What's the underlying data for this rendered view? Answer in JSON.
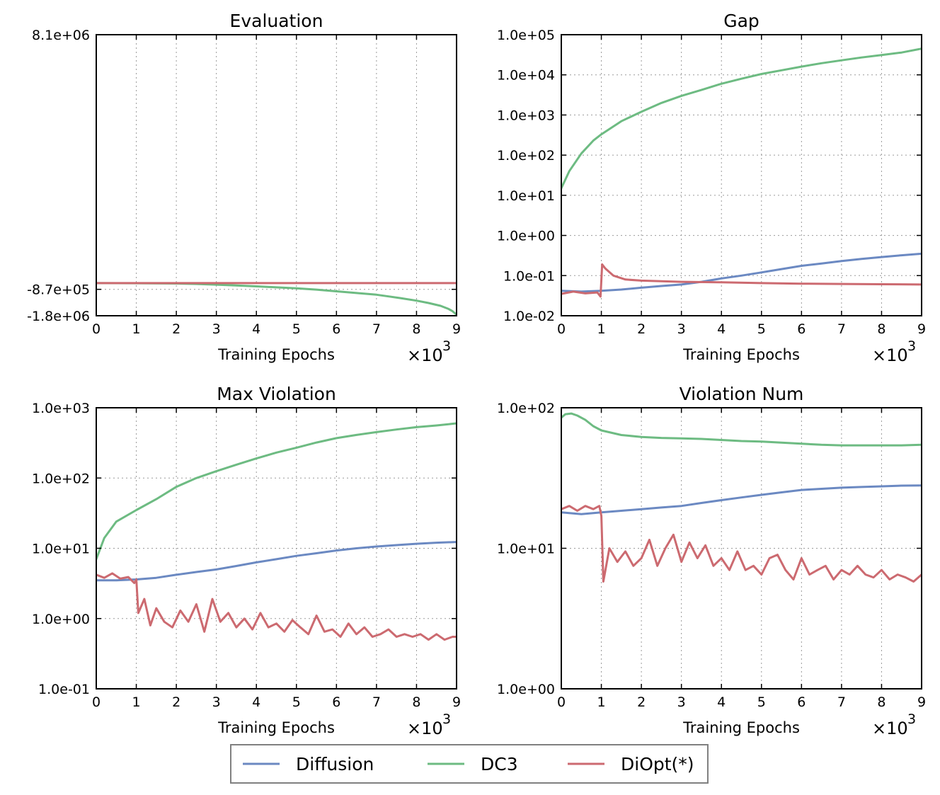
{
  "colors": {
    "diffusion": "#6b89c2",
    "dc3": "#6dbb82",
    "diopt": "#cc6a70"
  },
  "legend": {
    "entries": [
      {
        "key": "diffusion",
        "label": "Diffusion"
      },
      {
        "key": "dc3",
        "label": "DC3"
      },
      {
        "key": "diopt",
        "label": "DiOpt(*)"
      }
    ]
  },
  "chart_data": [
    {
      "type": "line",
      "title": "Evaluation",
      "xlabel": "Training Epochs",
      "x_multiplier_label": "×10",
      "x_multiplier_exp": "3",
      "xlim": [
        0,
        9
      ],
      "x_ticks": [
        0,
        1,
        2,
        3,
        4,
        5,
        6,
        7,
        8,
        9
      ],
      "yscale": "linear",
      "ylim": [
        -1800000,
        8100000
      ],
      "y_ticks": [
        {
          "value": 8100000,
          "label": "8.1e+06"
        },
        {
          "value": -870000,
          "label": "-8.7e+05"
        },
        {
          "value": -1800000,
          "label": "-1.8e+06"
        }
      ],
      "series": [
        {
          "name": "DC3",
          "color_key": "dc3",
          "x": [
            0,
            1,
            2,
            2.5,
            3,
            3.5,
            4,
            4.5,
            5,
            5.5,
            6,
            6.5,
            7,
            7.3,
            7.6,
            8,
            8.3,
            8.6,
            8.8,
            8.9,
            9
          ],
          "y": [
            -650000,
            -655000,
            -665000,
            -680000,
            -705000,
            -735000,
            -765000,
            -800000,
            -835000,
            -880000,
            -940000,
            -1000000,
            -1060000,
            -1120000,
            -1180000,
            -1270000,
            -1350000,
            -1450000,
            -1560000,
            -1640000,
            -1760000
          ]
        },
        {
          "name": "DiOpt(*)",
          "color_key": "diopt",
          "x": [
            0,
            9
          ],
          "y": [
            -650000,
            -650000
          ]
        }
      ]
    },
    {
      "type": "line",
      "title": "Gap",
      "xlabel": "Training Epochs",
      "x_multiplier_label": "×10",
      "x_multiplier_exp": "3",
      "xlim": [
        0,
        9
      ],
      "x_ticks": [
        0,
        1,
        2,
        3,
        4,
        5,
        6,
        7,
        8,
        9
      ],
      "yscale": "log",
      "ylim": [
        0.01,
        100000
      ],
      "y_ticks": [
        {
          "value": 100000,
          "label": "1.0e+05"
        },
        {
          "value": 10000,
          "label": "1.0e+04"
        },
        {
          "value": 1000,
          "label": "1.0e+03"
        },
        {
          "value": 100,
          "label": "1.0e+02"
        },
        {
          "value": 10,
          "label": "1.0e+01"
        },
        {
          "value": 1,
          "label": "1.0e+00"
        },
        {
          "value": 0.1,
          "label": "1.0e-01"
        },
        {
          "value": 0.01,
          "label": "1.0e-02"
        }
      ],
      "series": [
        {
          "name": "Diffusion",
          "color_key": "diffusion",
          "x": [
            0,
            0.5,
            1,
            1.5,
            2,
            2.5,
            3,
            3.5,
            4,
            4.5,
            5,
            5.5,
            6,
            6.5,
            7,
            7.5,
            8,
            8.5,
            9
          ],
          "y": [
            0.042,
            0.04,
            0.042,
            0.045,
            0.05,
            0.055,
            0.06,
            0.07,
            0.085,
            0.1,
            0.12,
            0.145,
            0.175,
            0.2,
            0.23,
            0.26,
            0.29,
            0.32,
            0.35
          ]
        },
        {
          "name": "DC3",
          "color_key": "dc3",
          "x": [
            0,
            0.2,
            0.5,
            0.8,
            1,
            1.5,
            2,
            2.5,
            3,
            3.5,
            4,
            4.5,
            5,
            5.5,
            6,
            6.5,
            7,
            7.5,
            8,
            8.5,
            9
          ],
          "y": [
            15,
            40,
            110,
            230,
            330,
            700,
            1200,
            2000,
            3000,
            4200,
            6000,
            8000,
            10500,
            13000,
            16000,
            19500,
            23000,
            27000,
            31000,
            36000,
            45000
          ]
        },
        {
          "name": "DiOpt(*)",
          "color_key": "diopt",
          "x": [
            0,
            0.3,
            0.6,
            0.9,
            0.98,
            1.02,
            1.1,
            1.3,
            1.6,
            2,
            3,
            4,
            5,
            6,
            7,
            8,
            9
          ],
          "y": [
            0.035,
            0.04,
            0.036,
            0.038,
            0.03,
            0.19,
            0.15,
            0.1,
            0.08,
            0.075,
            0.07,
            0.068,
            0.065,
            0.063,
            0.062,
            0.061,
            0.06
          ]
        }
      ]
    },
    {
      "type": "line",
      "title": "Max Violation",
      "xlabel": "Training Epochs",
      "x_multiplier_label": "×10",
      "x_multiplier_exp": "3",
      "xlim": [
        0,
        9
      ],
      "x_ticks": [
        0,
        1,
        2,
        3,
        4,
        5,
        6,
        7,
        8,
        9
      ],
      "yscale": "log",
      "ylim": [
        0.1,
        1000
      ],
      "y_ticks": [
        {
          "value": 1000,
          "label": "1.0e+03"
        },
        {
          "value": 100,
          "label": "1.0e+02"
        },
        {
          "value": 10,
          "label": "1.0e+01"
        },
        {
          "value": 1,
          "label": "1.0e+00"
        },
        {
          "value": 0.1,
          "label": "1.0e-01"
        }
      ],
      "series": [
        {
          "name": "Diffusion",
          "color_key": "diffusion",
          "x": [
            0,
            0.5,
            1,
            1.5,
            2,
            2.5,
            3,
            3.5,
            4,
            4.5,
            5,
            5.5,
            6,
            6.5,
            7,
            7.5,
            8,
            8.5,
            9
          ],
          "y": [
            3.5,
            3.5,
            3.6,
            3.8,
            4.2,
            4.6,
            5.0,
            5.6,
            6.3,
            7.0,
            7.8,
            8.5,
            9.3,
            10.0,
            10.6,
            11.1,
            11.6,
            12.0,
            12.3
          ]
        },
        {
          "name": "DC3",
          "color_key": "dc3",
          "x": [
            0,
            0.2,
            0.5,
            1,
            1.5,
            2,
            2.5,
            3,
            3.5,
            4,
            4.5,
            5,
            5.5,
            6,
            6.5,
            7,
            7.5,
            8,
            8.5,
            9
          ],
          "y": [
            7,
            14,
            24,
            35,
            50,
            75,
            100,
            125,
            155,
            190,
            230,
            270,
            320,
            370,
            410,
            450,
            490,
            530,
            560,
            600
          ]
        },
        {
          "name": "DiOpt(*)",
          "color_key": "diopt",
          "x": [
            0,
            0.2,
            0.4,
            0.6,
            0.8,
            0.95,
            1.0,
            1.05,
            1.2,
            1.35,
            1.5,
            1.7,
            1.9,
            2.1,
            2.3,
            2.5,
            2.7,
            2.9,
            3.1,
            3.3,
            3.5,
            3.7,
            3.9,
            4.1,
            4.3,
            4.5,
            4.7,
            4.9,
            5.1,
            5.3,
            5.5,
            5.7,
            5.9,
            6.1,
            6.3,
            6.5,
            6.7,
            6.9,
            7.1,
            7.3,
            7.5,
            7.7,
            7.9,
            8.1,
            8.3,
            8.5,
            8.7,
            8.9,
            9
          ],
          "y": [
            4.2,
            3.8,
            4.4,
            3.7,
            3.9,
            3.2,
            3.6,
            1.2,
            1.9,
            0.8,
            1.4,
            0.9,
            0.75,
            1.3,
            0.9,
            1.6,
            0.65,
            1.9,
            0.9,
            1.2,
            0.75,
            1.0,
            0.7,
            1.2,
            0.75,
            0.85,
            0.65,
            0.95,
            0.75,
            0.6,
            1.1,
            0.65,
            0.7,
            0.55,
            0.85,
            0.6,
            0.75,
            0.55,
            0.6,
            0.7,
            0.55,
            0.6,
            0.55,
            0.6,
            0.5,
            0.6,
            0.5,
            0.55,
            0.55
          ]
        }
      ]
    },
    {
      "type": "line",
      "title": "Violation Num",
      "xlabel": "Training Epochs",
      "x_multiplier_label": "×10",
      "x_multiplier_exp": "3",
      "xlim": [
        0,
        9
      ],
      "x_ticks": [
        0,
        1,
        2,
        3,
        4,
        5,
        6,
        7,
        8,
        9
      ],
      "yscale": "log",
      "ylim": [
        1,
        100
      ],
      "y_ticks": [
        {
          "value": 100,
          "label": "1.0e+02"
        },
        {
          "value": 10,
          "label": "1.0e+01"
        },
        {
          "value": 1,
          "label": "1.0e+00"
        }
      ],
      "series": [
        {
          "name": "Diffusion",
          "color_key": "diffusion",
          "x": [
            0,
            0.5,
            1,
            1.5,
            2,
            2.5,
            3,
            3.5,
            4,
            4.5,
            5,
            5.5,
            6,
            6.5,
            7,
            7.5,
            8,
            8.5,
            9
          ],
          "y": [
            18,
            17.5,
            18,
            18.5,
            19,
            19.5,
            20,
            21,
            22,
            23,
            24,
            25,
            26,
            26.5,
            27,
            27.3,
            27.6,
            27.9,
            28
          ]
        },
        {
          "name": "DC3",
          "color_key": "dc3",
          "x": [
            0,
            0.1,
            0.25,
            0.4,
            0.6,
            0.8,
            1,
            1.5,
            2,
            2.5,
            3,
            3.5,
            4,
            4.5,
            5,
            5.5,
            6,
            6.5,
            7,
            7.5,
            8,
            8.5,
            9
          ],
          "y": [
            85,
            90,
            91,
            88,
            82,
            74,
            69,
            64,
            62,
            61,
            60.5,
            60,
            59,
            58,
            57.5,
            56.5,
            55.5,
            54.5,
            54,
            54,
            54,
            54,
            54.5
          ]
        },
        {
          "name": "DiOpt(*)",
          "color_key": "diopt",
          "x": [
            0,
            0.2,
            0.4,
            0.6,
            0.8,
            0.95,
            1.0,
            1.05,
            1.2,
            1.4,
            1.6,
            1.8,
            2.0,
            2.2,
            2.4,
            2.6,
            2.8,
            3.0,
            3.2,
            3.4,
            3.6,
            3.8,
            4.0,
            4.2,
            4.4,
            4.6,
            4.8,
            5.0,
            5.2,
            5.4,
            5.6,
            5.8,
            6.0,
            6.2,
            6.4,
            6.6,
            6.8,
            7.0,
            7.2,
            7.4,
            7.6,
            7.8,
            8.0,
            8.2,
            8.4,
            8.6,
            8.8,
            9
          ],
          "y": [
            19,
            20,
            18.5,
            20,
            19,
            20,
            17,
            5.8,
            10,
            8,
            9.5,
            7.5,
            8.5,
            11.5,
            7.5,
            10,
            12.5,
            8,
            11,
            8.5,
            10.5,
            7.5,
            8.5,
            7,
            9.5,
            7,
            7.5,
            6.5,
            8.5,
            9,
            7,
            6,
            8.5,
            6.5,
            7,
            7.5,
            6,
            7,
            6.5,
            7.5,
            6.5,
            6.2,
            7,
            6,
            6.5,
            6.2,
            5.8,
            6.5
          ]
        }
      ]
    }
  ]
}
